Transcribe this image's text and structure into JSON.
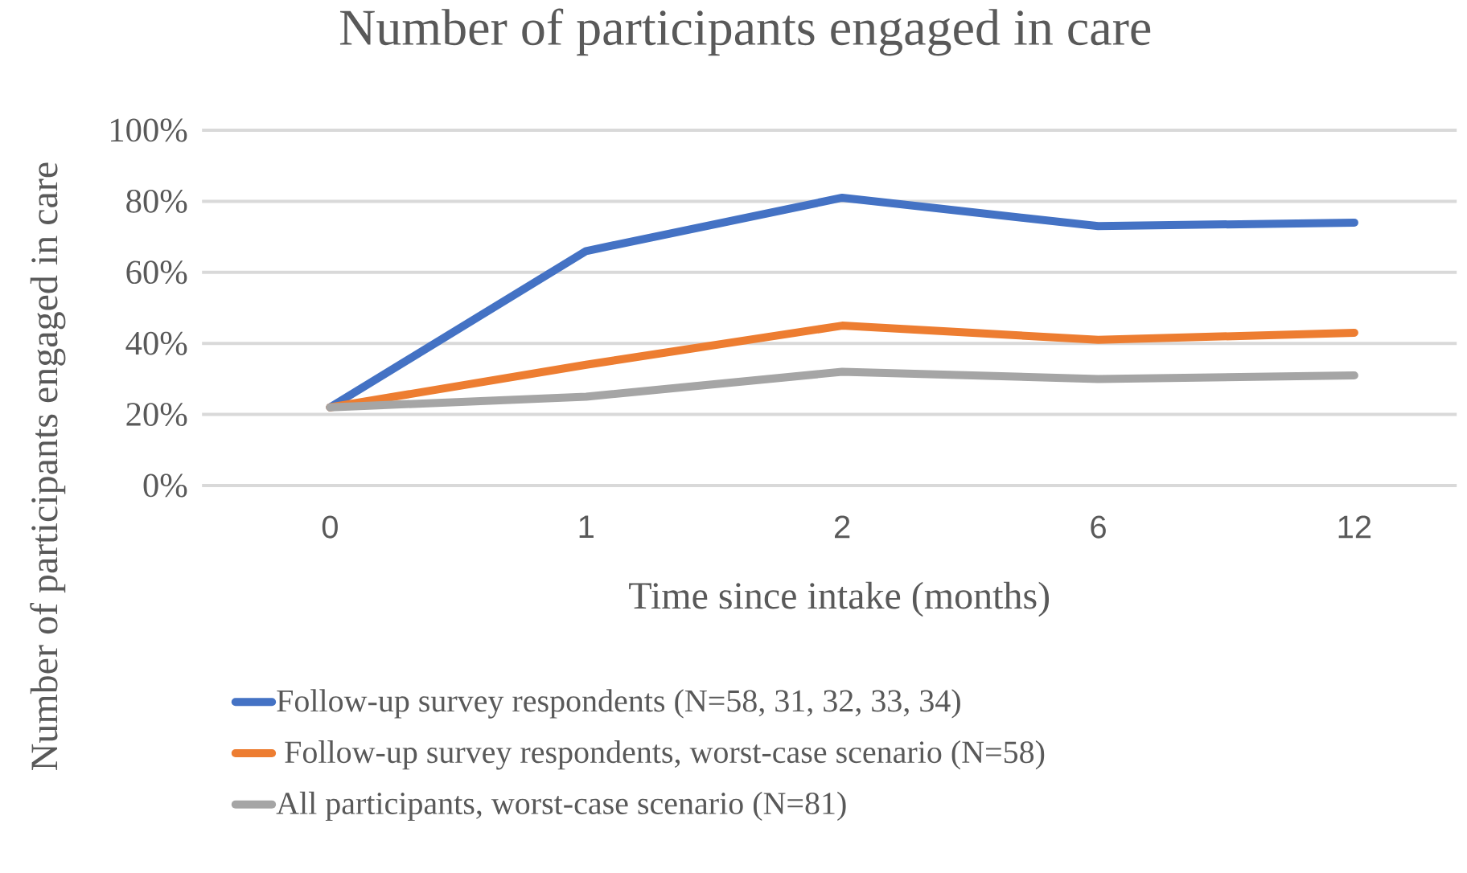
{
  "chart_data": {
    "type": "line",
    "title": "Number of participants engaged in care",
    "xlabel": "Time since intake (months)",
    "ylabel": "Number of participants engaged in care",
    "categories": [
      "0",
      "1",
      "2",
      "6",
      "12"
    ],
    "series": [
      {
        "name": "Follow-up survey respondents (N=58, 31, 32, 33, 34)",
        "color": "#4472c4",
        "values": [
          22,
          66,
          81,
          73,
          74
        ]
      },
      {
        "name": " Follow-up survey respondents, worst-case scenario (N=58)",
        "color": "#ed7d31",
        "values": [
          22,
          34,
          45,
          41,
          43
        ]
      },
      {
        "name": "All participants, worst-case scenario (N=81)",
        "color": "#a5a5a5",
        "values": [
          22,
          25,
          32,
          30,
          31
        ]
      }
    ],
    "ylim": [
      0,
      100
    ],
    "yticks": [
      {
        "value": 0,
        "label": "0%"
      },
      {
        "value": 20,
        "label": "20%"
      },
      {
        "value": 40,
        "label": "40%"
      },
      {
        "value": 60,
        "label": "60%"
      },
      {
        "value": 80,
        "label": "80%"
      },
      {
        "value": 100,
        "label": "100%"
      }
    ],
    "grid": "y",
    "legend": "bottom",
    "marker": "none",
    "line_style": "solid"
  }
}
